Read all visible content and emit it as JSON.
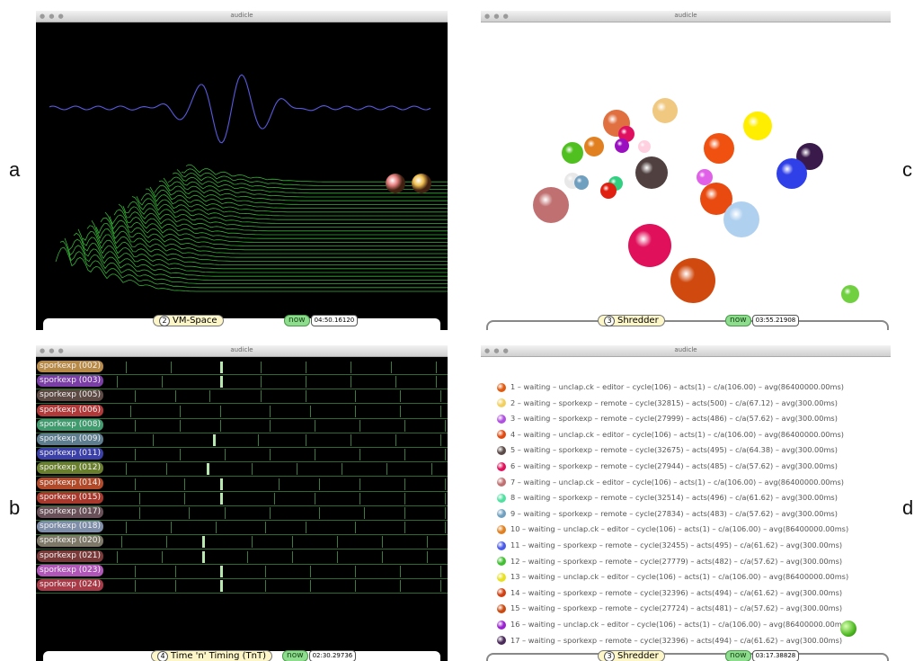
{
  "panel_letters": {
    "a": "a",
    "b": "b",
    "c": "c",
    "d": "d"
  },
  "window_a": {
    "title": "audicle",
    "dots": "● ● ●",
    "status": {
      "number": "2",
      "name": "VM-Space",
      "now_label": "now",
      "time": "04:50.16120"
    },
    "colors": {
      "waveform": "#5a5ae0",
      "spectrum": "#3ecf3e"
    },
    "spheres": [
      {
        "color": "#e78080"
      },
      {
        "color": "#f0c050"
      }
    ]
  },
  "window_b": {
    "title": "audicle",
    "dots": "● ● ●",
    "rows": [
      {
        "label": "sporkexp (002)",
        "color": "#b88a48"
      },
      {
        "label": "sporkexp (003)",
        "color": "#7b3ea6"
      },
      {
        "label": "sporkexp (005)",
        "color": "#5d4a44"
      },
      {
        "label": "sporkexp (006)",
        "color": "#b03a3a"
      },
      {
        "label": "sporkexp (008)",
        "color": "#3f9a6e"
      },
      {
        "label": "sporkexp (009)",
        "color": "#5e7d8f"
      },
      {
        "label": "sporkexp (011)",
        "color": "#3b3fa8"
      },
      {
        "label": "sporkexp (012)",
        "color": "#6a7f2e"
      },
      {
        "label": "sporkexp (014)",
        "color": "#b24a2a"
      },
      {
        "label": "sporkexp (015)",
        "color": "#a8382c"
      },
      {
        "label": "sporkexp (017)",
        "color": "#6a5058"
      },
      {
        "label": "sporkexp (018)",
        "color": "#7e8da8"
      },
      {
        "label": "sporkexp (020)",
        "color": "#7e7868"
      },
      {
        "label": "sporkexp (021)",
        "color": "#7a3a3a"
      },
      {
        "label": "sporkexp (023)",
        "color": "#b056b8"
      },
      {
        "label": "sporkexp (024)",
        "color": "#a83a48"
      }
    ],
    "status": {
      "number": "4",
      "name": "Time 'n' Timing (TnT)",
      "now_label": "now",
      "time": "02:30.29736"
    }
  },
  "window_c": {
    "title": "audicle",
    "dots": "● ● ●",
    "status": {
      "number": "3",
      "name": "Shredder",
      "now_label": "now",
      "time": "03:55.21908"
    }
  },
  "window_d": {
    "title": "audicle",
    "dots": "● ● ●",
    "lines": [
      {
        "text": "1 – waiting – unclap.ck – editor – cycle(106) – acts(1) – c/a(106.00) – avg(86400000.00ms)",
        "color": "#e05a10"
      },
      {
        "text": "2 – waiting – sporkexp – remote – cycle(32815) – acts(500) – c/a(67.12) – avg(300.00ms)",
        "color": "#f2d060"
      },
      {
        "text": "3 – waiting – sporkexp – remote – cycle(27999) – acts(486) – c/a(57.62) – avg(300.00ms)",
        "color": "#b050e0"
      },
      {
        "text": "4 – waiting – unclap.ck – editor – cycle(106) – acts(1) – c/a(106.00) – avg(86400000.00ms)",
        "color": "#e04a10"
      },
      {
        "text": "5 – waiting – sporkexp – remote – cycle(32675) – acts(495) – c/a(64.38) – avg(300.00ms)",
        "color": "#5a4a48"
      },
      {
        "text": "6 – waiting – sporkexp – remote – cycle(27944) – acts(485) – c/a(57.62) – avg(300.00ms)",
        "color": "#e0105a"
      },
      {
        "text": "7 – waiting – unclap.ck – editor – cycle(106) – acts(1) – c/a(106.00) – avg(86400000.00ms)",
        "color": "#c07070"
      },
      {
        "text": "8 – waiting – sporkexp – remote – cycle(32514) – acts(496) – c/a(61.62) – avg(300.00ms)",
        "color": "#50e0a0"
      },
      {
        "text": "9 – waiting – sporkexp – remote – cycle(27834) – acts(483) – c/a(57.62) – avg(300.00ms)",
        "color": "#70a0c0"
      },
      {
        "text": "10 – waiting – unclap.ck – editor – cycle(106) – acts(1) – c/a(106.00) – avg(86400000.00ms)",
        "color": "#e08020"
      },
      {
        "text": "11 – waiting – sporkexp – remote – cycle(32455) – acts(495) – c/a(61.62) – avg(300.00ms)",
        "color": "#4a5ae8"
      },
      {
        "text": "12 – waiting – sporkexp – remote – cycle(27779) – acts(482) – c/a(57.62) – avg(300.00ms)",
        "color": "#40c030"
      },
      {
        "text": "13 – waiting – unclap.ck – editor – cycle(106) – acts(1) – c/a(106.00) – avg(86400000.00ms)",
        "color": "#e8e020"
      },
      {
        "text": "14 – waiting – sporkexp – remote – cycle(32396) – acts(494) – c/a(61.62) – avg(300.00ms)",
        "color": "#d04010"
      },
      {
        "text": "15 – waiting – sporkexp – remote – cycle(27724) – acts(481) – c/a(57.62) – avg(300.00ms)",
        "color": "#c84a10"
      },
      {
        "text": "16 – waiting – unclap.ck – editor – cycle(106) – acts(1) – c/a(106.00) – avg(86400000.00ms)",
        "color": "#9a20d0"
      },
      {
        "text": "17 – waiting – sporkexp – remote – cycle(32396) – acts(494) – c/a(61.62) – avg(300.00ms)",
        "color": "#4a2a5a"
      }
    ],
    "status": {
      "number": "3",
      "name": "Shredder",
      "now_label": "now",
      "time": "03:17.38828"
    }
  }
}
